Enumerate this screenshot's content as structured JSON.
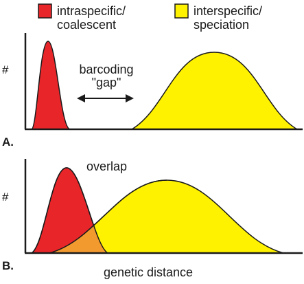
{
  "legend": {
    "intraspecific_line1": "intraspecific/",
    "intraspecific_line2": "coalescent",
    "interspecific_line1": "interspecific/",
    "interspecific_line2": "speciation"
  },
  "panel_a": {
    "letter": "A.",
    "y_symbol": "#",
    "gap_line1": "barcoding",
    "gap_line2": "\"gap\""
  },
  "panel_b": {
    "letter": "B.",
    "y_symbol": "#",
    "overlap_label": "overlap"
  },
  "x_axis_label": "genetic distance",
  "colors": {
    "intraspecific": "#e8262a",
    "interspecific": "#fff200",
    "overlap": "#f39a2f",
    "outline": "#1a1a1a"
  }
}
